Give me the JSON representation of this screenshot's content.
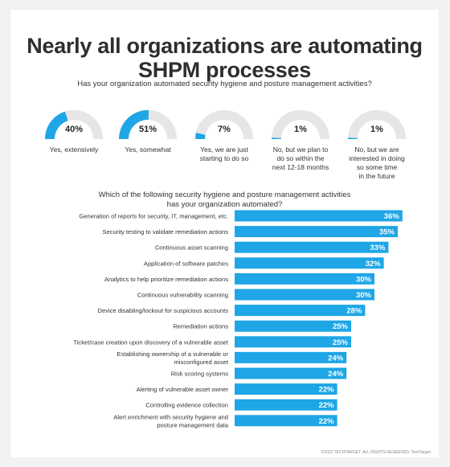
{
  "title_line1": "Nearly all organizations are automating",
  "title_line2": "SHPM processes",
  "subtitle": "Has your organization automated security hygiene and posture management activities?",
  "accent_color": "#1ea6e6",
  "track_color": "#e6e6e6",
  "gauges": [
    {
      "value": 40,
      "label": "40%",
      "text": [
        "Yes, extensively"
      ]
    },
    {
      "value": 51,
      "label": "51%",
      "text": [
        "Yes, somewhat"
      ]
    },
    {
      "value": 7,
      "label": "7%",
      "text": [
        "Yes, we are just",
        "starting to do so"
      ]
    },
    {
      "value": 1,
      "label": "1%",
      "text": [
        "No, but we plan to",
        "do so within the",
        "next 12-18 months"
      ]
    },
    {
      "value": 1,
      "label": "1%",
      "text": [
        "No, but we are",
        "interested in doing",
        "so some time",
        "in the future"
      ]
    }
  ],
  "chart_title_line1": "Which of the following security hygiene and posture management activities",
  "chart_title_line2": "has your organization automated?",
  "chart_data": {
    "type": "bar",
    "orientation": "horizontal",
    "title": "Which of the following security hygiene and posture management activities has your organization automated?",
    "categories": [
      [
        "Generation of reports for security, IT, management, etc."
      ],
      [
        "Security testing to validate remediation actions"
      ],
      [
        "Continuous asset scanning"
      ],
      [
        "Application of software patches"
      ],
      [
        "Analytics to help prioritize remediation actions"
      ],
      [
        "Continuous vulnerability scanning"
      ],
      [
        "Device disabling/lockout for suspicious accounts"
      ],
      [
        "Remediation actions"
      ],
      [
        "Ticket/case creation upon discovery of a vulnerable asset"
      ],
      [
        "Establishing ownership of a vulnerable or",
        "misconfigured asset"
      ],
      [
        "Risk scoring systems"
      ],
      [
        "Alerting of vulnerable asset owner"
      ],
      [
        "Controlling evidence collection"
      ],
      [
        "Alert enrichment with security hygiene and",
        "posture management data"
      ]
    ],
    "values": [
      36,
      35,
      33,
      32,
      30,
      30,
      28,
      25,
      25,
      24,
      24,
      22,
      22,
      22
    ],
    "value_labels": [
      "36%",
      "35%",
      "33%",
      "32%",
      "30%",
      "30%",
      "28%",
      "25%",
      "25%",
      "24%",
      "24%",
      "22%",
      "22%",
      "22%"
    ],
    "unit": "%",
    "grid": false,
    "legend": "none"
  },
  "footer": "©2023 TECHTARGET. ALL RIGHTS RESERVED. TechTarget"
}
